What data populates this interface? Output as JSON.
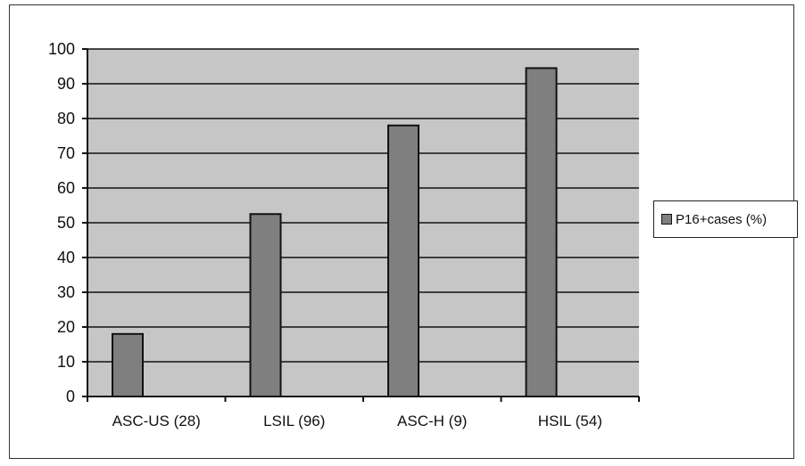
{
  "chart_data": {
    "type": "bar",
    "categories": [
      "ASC-US (28)",
      "LSIL (96)",
      "ASC-H (9)",
      "HSIL (54)"
    ],
    "series": [
      {
        "name": "P16+cases (%)",
        "values": [
          18,
          52.5,
          78,
          94.5
        ]
      }
    ],
    "title": "",
    "xlabel": "",
    "ylabel": "",
    "ylim": [
      0,
      100
    ],
    "yticks": [
      "0",
      "10",
      "20",
      "30",
      "40",
      "50",
      "60",
      "70",
      "80",
      "90",
      "100"
    ],
    "grid": true,
    "legend_position": "right",
    "colors": {
      "plot_background": "#c6c6c6",
      "bar_fill": "#7f7f7f",
      "bar_stroke": "#111111",
      "gridline": "#111111"
    }
  }
}
